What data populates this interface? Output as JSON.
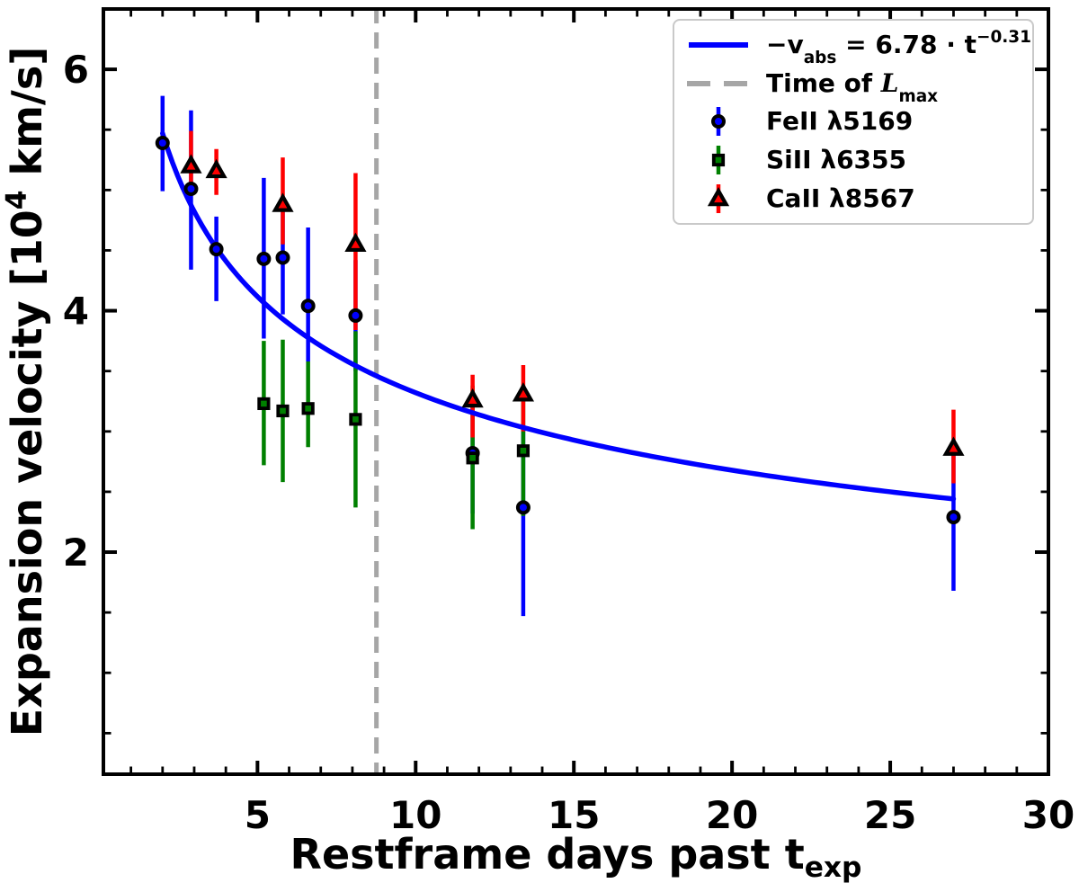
{
  "chart_data": {
    "type": "scatter",
    "title": "",
    "xlabel_segments": [
      {
        "t": "Restframe days past t"
      },
      {
        "t": "exp",
        "s": "sub"
      }
    ],
    "ylabel_segments": [
      {
        "t": "Expansion velocity [10"
      },
      {
        "t": "4",
        "s": "sup"
      },
      {
        "t": " km/s]"
      }
    ],
    "xlim": [
      0.13,
      30.0
    ],
    "ylim": [
      0.16,
      6.5
    ],
    "x_major_ticks": [
      5,
      10,
      15,
      20,
      25,
      30
    ],
    "x_minor_step": 1,
    "y_major_ticks": [
      2,
      4,
      6
    ],
    "y_minor_step": 0.5,
    "grid": false,
    "legend_position": "upper right",
    "colors": {
      "feii": "#0000ff",
      "siii": "#008000",
      "caii": "#ff0000",
      "fit_line": "#0000ff",
      "vline": "#a6a6a6",
      "marker_edge": "#000000",
      "axes": "#000000",
      "legend_border": "#c9c9c9"
    },
    "vline": {
      "x": 8.76
    },
    "fit": {
      "coefficient": 6.78,
      "exponent": -0.31,
      "t_start": 2.0,
      "t_end": 27.0
    },
    "series": [
      {
        "name": "FeII λ5169",
        "marker": "circle",
        "color": "#0000ff",
        "points": [
          {
            "t": 2.0,
            "v": 5.39,
            "lo": 4.99,
            "hi": 5.78
          },
          {
            "t": 2.9,
            "v": 5.01,
            "lo": 4.34,
            "hi": 5.66
          },
          {
            "t": 3.7,
            "v": 4.51,
            "lo": 4.08,
            "hi": 4.78
          },
          {
            "t": 5.2,
            "v": 4.43,
            "lo": 3.77,
            "hi": 5.1
          },
          {
            "t": 5.8,
            "v": 4.44,
            "lo": 3.97,
            "hi": 4.88
          },
          {
            "t": 6.6,
            "v": 4.04,
            "lo": 3.58,
            "hi": 4.69
          },
          {
            "t": 8.1,
            "v": 3.96,
            "lo": 3.5,
            "hi": 4.42
          },
          {
            "t": 11.8,
            "v": 2.82,
            "lo": 2.32,
            "hi": 3.32
          },
          {
            "t": 13.4,
            "v": 2.37,
            "lo": 1.47,
            "hi": 3.05
          },
          {
            "t": 27.0,
            "v": 2.29,
            "lo": 1.68,
            "hi": 2.85
          }
        ]
      },
      {
        "name": "SiII λ6355",
        "marker": "square",
        "color": "#008000",
        "points": [
          {
            "t": 5.2,
            "v": 3.23,
            "lo": 2.72,
            "hi": 3.75
          },
          {
            "t": 5.8,
            "v": 3.17,
            "lo": 2.58,
            "hi": 3.76
          },
          {
            "t": 6.6,
            "v": 3.19,
            "lo": 2.87,
            "hi": 3.58
          },
          {
            "t": 8.1,
            "v": 3.1,
            "lo": 2.37,
            "hi": 3.83
          },
          {
            "t": 11.8,
            "v": 2.78,
            "lo": 2.19,
            "hi": 3.38
          },
          {
            "t": 13.4,
            "v": 2.84,
            "lo": 2.3,
            "hi": 3.38
          }
        ]
      },
      {
        "name": "CaII λ8567",
        "marker": "triangle",
        "color": "#ff0000",
        "points": [
          {
            "t": 2.9,
            "v": 5.2,
            "lo": 4.97,
            "hi": 5.49
          },
          {
            "t": 3.7,
            "v": 5.16,
            "lo": 4.96,
            "hi": 5.34
          },
          {
            "t": 5.8,
            "v": 4.88,
            "lo": 4.55,
            "hi": 5.27
          },
          {
            "t": 8.1,
            "v": 4.55,
            "lo": 3.84,
            "hi": 5.14
          },
          {
            "t": 11.8,
            "v": 3.26,
            "lo": 2.95,
            "hi": 3.47
          },
          {
            "t": 13.4,
            "v": 3.31,
            "lo": 3.0,
            "hi": 3.55
          },
          {
            "t": 27.0,
            "v": 2.86,
            "lo": 2.57,
            "hi": 3.18
          }
        ]
      }
    ],
    "legend": {
      "entries": [
        {
          "swatch": "line",
          "color": "#0000ff",
          "segments": [
            {
              "t": "−v"
            },
            {
              "t": "abs",
              "s": "sub"
            },
            {
              "t": " = 6.78 · t"
            },
            {
              "t": "−0.31",
              "s": "sup"
            }
          ]
        },
        {
          "swatch": "dashed-line",
          "color": "#a6a6a6",
          "segments": [
            {
              "t": "Time of "
            },
            {
              "t": "L",
              "s": "it"
            },
            {
              "t": "max",
              "s": "sub"
            }
          ]
        },
        {
          "swatch": "circle",
          "color": "#0000ff",
          "segments": [
            {
              "t": "FeII λ5169"
            }
          ]
        },
        {
          "swatch": "square",
          "color": "#008000",
          "segments": [
            {
              "t": "SiII λ6355"
            }
          ]
        },
        {
          "swatch": "triangle",
          "color": "#ff0000",
          "segments": [
            {
              "t": "CaII λ8567"
            }
          ]
        }
      ]
    }
  }
}
